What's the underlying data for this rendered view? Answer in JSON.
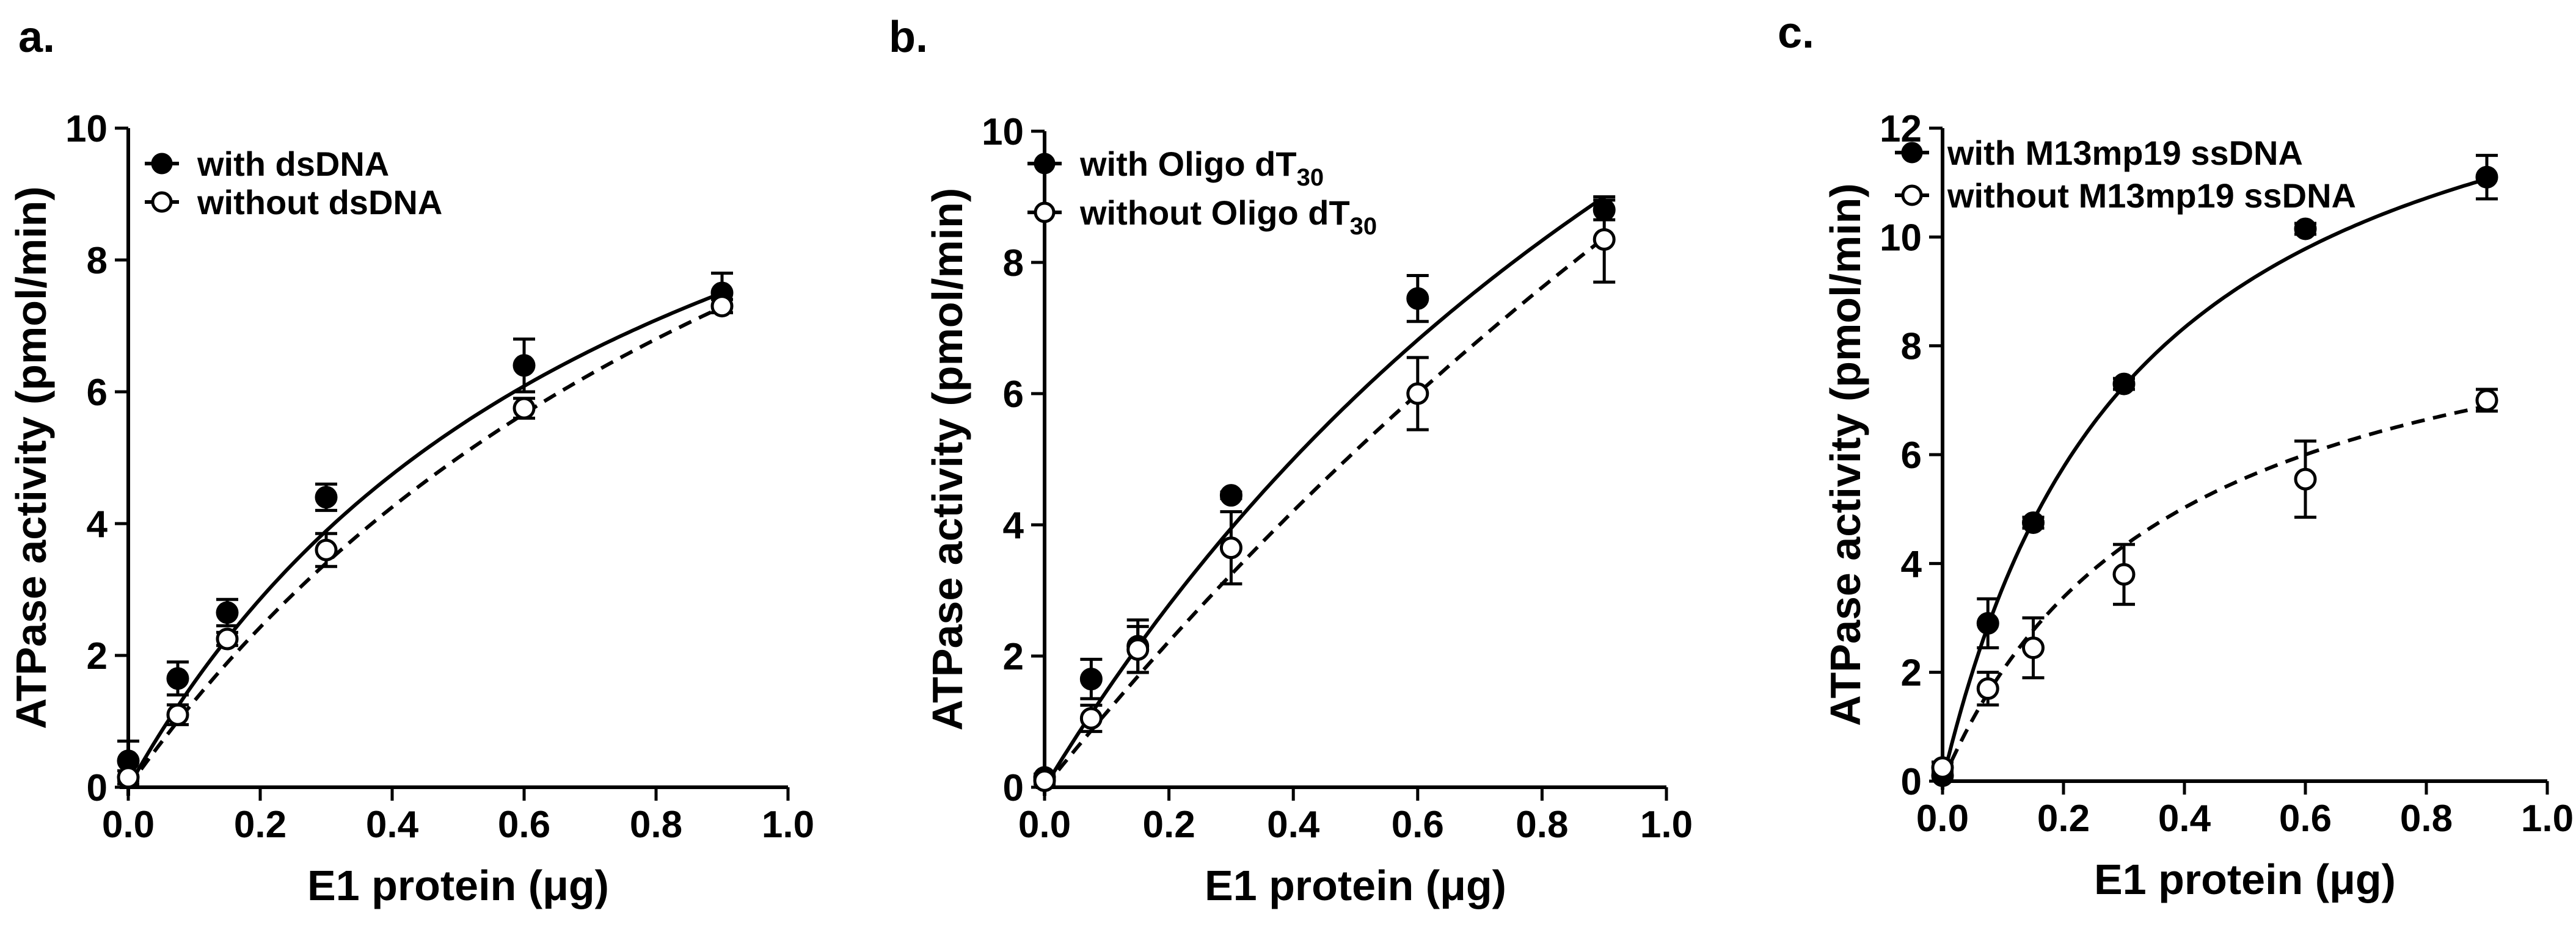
{
  "chart_data": [
    {
      "type": "scatter",
      "panel_label": "a.",
      "xlabel": "E1 protein (μg)",
      "ylabel": "ATPase activity (pmol/min)",
      "xlim": [
        0.0,
        1.0
      ],
      "ylim": [
        0,
        10
      ],
      "xticks": [
        "0.0",
        "0.2",
        "0.4",
        "0.6",
        "0.8",
        "1.0"
      ],
      "yticks": [
        "0",
        "2",
        "4",
        "6",
        "8",
        "10"
      ],
      "legend_position": "top-left",
      "series": [
        {
          "name": "with dsDNA",
          "legend_main": "with dsDNA",
          "legend_sub": "",
          "marker": "filled-circle",
          "line": "solid",
          "x": [
            0.0,
            0.075,
            0.15,
            0.3,
            0.6,
            0.9
          ],
          "y": [
            0.4,
            1.65,
            2.65,
            4.4,
            6.4,
            7.5
          ],
          "err": [
            0.3,
            0.25,
            0.2,
            0.2,
            0.4,
            0.3
          ],
          "fit": {
            "vmax": 14.0,
            "k": 0.78
          }
        },
        {
          "name": "without dsDNA",
          "legend_main": "without dsDNA",
          "legend_sub": "",
          "marker": "open-circle",
          "line": "dashed",
          "x": [
            0.0,
            0.075,
            0.15,
            0.3,
            0.6,
            0.9
          ],
          "y": [
            0.15,
            1.1,
            2.25,
            3.6,
            5.75,
            7.3
          ],
          "err": [
            0.1,
            0.15,
            0.1,
            0.25,
            0.15,
            0.1
          ],
          "fit": {
            "vmax": 17.0,
            "k": 1.2
          }
        }
      ]
    },
    {
      "type": "scatter",
      "panel_label": "b.",
      "xlabel": "E1 protein (μg)",
      "ylabel": "ATPase activity (pmol/min)",
      "xlim": [
        0.0,
        1.0
      ],
      "ylim": [
        0,
        10
      ],
      "xticks": [
        "0.0",
        "0.2",
        "0.4",
        "0.6",
        "0.8",
        "1.0"
      ],
      "yticks": [
        "0",
        "2",
        "4",
        "6",
        "8",
        "10"
      ],
      "legend_position": "top-left",
      "series": [
        {
          "name": "with Oligo dT30",
          "legend_main": "with Oligo dT",
          "legend_sub": "30",
          "marker": "filled-circle",
          "line": "solid",
          "x": [
            0.0,
            0.075,
            0.15,
            0.3,
            0.6,
            0.9
          ],
          "y": [
            0.15,
            1.65,
            2.15,
            4.45,
            7.45,
            8.8
          ],
          "err": [
            0.05,
            0.3,
            0.4,
            0.05,
            0.35,
            0.15
          ],
          "fit": {
            "vmax": 25.0,
            "k": 1.6
          }
        },
        {
          "name": "without Oligo dT30",
          "legend_main": "without Oligo dT",
          "legend_sub": "30",
          "marker": "open-circle",
          "line": "dashed",
          "x": [
            0.0,
            0.075,
            0.15,
            0.3,
            0.6,
            0.9
          ],
          "y": [
            0.1,
            1.05,
            2.1,
            3.65,
            6.0,
            8.35
          ],
          "err": [
            0.05,
            0.2,
            0.35,
            0.55,
            0.55,
            0.65
          ],
          "fit": {
            "vmax": 40.0,
            "k": 3.4
          }
        }
      ]
    },
    {
      "type": "scatter",
      "panel_label": "c.",
      "xlabel": "E1 protein (μg)",
      "ylabel": "ATPase activity (pmol/min)",
      "xlim": [
        0.0,
        1.0
      ],
      "ylim": [
        0,
        12
      ],
      "xticks": [
        "0.0",
        "0.2",
        "0.4",
        "0.6",
        "0.8",
        "1.0"
      ],
      "yticks": [
        "0",
        "2",
        "4",
        "6",
        "8",
        "10",
        "12"
      ],
      "legend_position": "top-left",
      "series": [
        {
          "name": "with M13mp19 ssDNA",
          "legend_main": "with M13mp19 ssDNA",
          "legend_sub": "",
          "marker": "filled-circle",
          "line": "solid",
          "x": [
            0.0,
            0.075,
            0.15,
            0.3,
            0.6,
            0.9
          ],
          "y": [
            0.1,
            2.9,
            4.75,
            7.3,
            10.15,
            11.1
          ],
          "err": [
            0.1,
            0.45,
            0.1,
            0.1,
            0.1,
            0.4
          ],
          "fit": {
            "vmax": 15.0,
            "k": 0.32
          }
        },
        {
          "name": "without M13mp19 ssDNA",
          "legend_main": "without M13mp19 ssDNA",
          "legend_sub": "",
          "marker": "open-circle",
          "line": "dashed",
          "x": [
            0.0,
            0.075,
            0.15,
            0.3,
            0.6,
            0.9
          ],
          "y": [
            0.25,
            1.7,
            2.45,
            3.8,
            5.55,
            7.0
          ],
          "err": [
            0.1,
            0.3,
            0.55,
            0.55,
            0.7,
            0.2
          ],
          "fit": {
            "vmax": 9.8,
            "k": 0.38
          }
        }
      ]
    }
  ]
}
